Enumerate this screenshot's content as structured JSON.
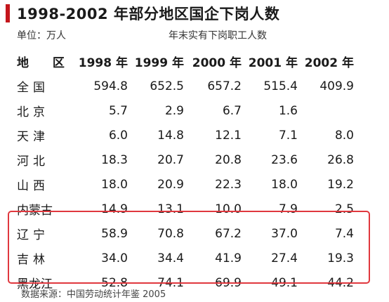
{
  "title": "1998-2002 年部分地区国企下岗人数",
  "unit_label": "单位：万人",
  "table_note": "年末实有下岗职工人数",
  "headers": [
    "地 区",
    "1998 年",
    "1999 年",
    "2000 年",
    "2001 年",
    "2002 年"
  ],
  "rows": [
    {
      "region": "全国",
      "values": [
        "594.8",
        "652.5",
        "657.2",
        "515.4",
        "409.9"
      ]
    },
    {
      "region": "北京",
      "values": [
        "5.7",
        "2.9",
        "6.7",
        "1.6",
        ""
      ]
    },
    {
      "region": "天津",
      "values": [
        "6.0",
        "14.8",
        "12.1",
        "7.1",
        "8.0"
      ]
    },
    {
      "region": "河北",
      "values": [
        "18.3",
        "20.7",
        "20.8",
        "23.6",
        "26.8"
      ]
    },
    {
      "region": "山西",
      "values": [
        "18.0",
        "20.9",
        "22.3",
        "18.0",
        "19.2"
      ]
    },
    {
      "region": "内蒙古",
      "values": [
        "14.9",
        "13.1",
        "10.0",
        "7.9",
        "2.5"
      ]
    },
    {
      "region": "辽宁",
      "values": [
        "58.9",
        "70.8",
        "67.2",
        "37.0",
        "7.4"
      ]
    },
    {
      "region": "吉林",
      "values": [
        "34.0",
        "34.4",
        "41.9",
        "27.4",
        "19.3"
      ]
    },
    {
      "region": "黑龙江",
      "values": [
        "52.8",
        "74.1",
        "69.9",
        "49.1",
        "44.2"
      ]
    }
  ],
  "highlight_color": "#e0383e",
  "accent_color": "#c4161c",
  "source": "数据来源：中国劳动统计年鉴 2005"
}
